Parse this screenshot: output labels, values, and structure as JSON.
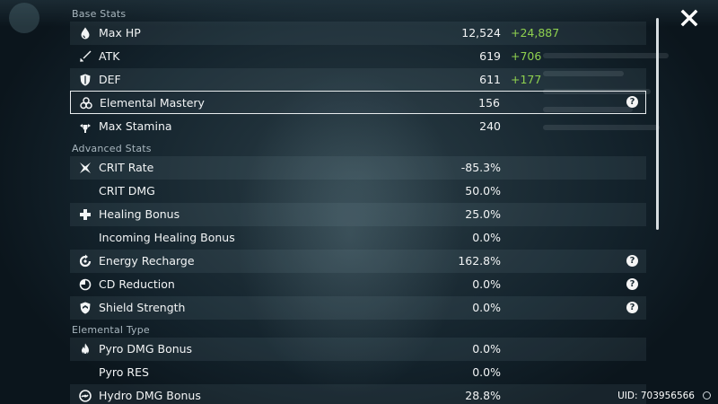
{
  "sections": {
    "base": "Base Stats",
    "advanced": "Advanced Stats",
    "elemental": "Elemental Type"
  },
  "base_stats": [
    {
      "icon": "hp-drop-icon",
      "label": "Max HP",
      "value": "12,524",
      "bonus": "+24,887"
    },
    {
      "icon": "sword-icon",
      "label": "ATK",
      "value": "619",
      "bonus": "+706"
    },
    {
      "icon": "shield-icon",
      "label": "DEF",
      "value": "611",
      "bonus": "+177"
    },
    {
      "icon": "elemental-mastery-icon",
      "label": "Elemental Mastery",
      "value": "156",
      "bonus": ""
    },
    {
      "icon": "stamina-icon",
      "label": "Max Stamina",
      "value": "240",
      "bonus": ""
    }
  ],
  "advanced_stats": [
    {
      "icon": "crit-rate-icon",
      "label": "CRIT Rate",
      "value": "-85.3%"
    },
    {
      "icon": "",
      "label": "CRIT DMG",
      "value": "50.0%"
    },
    {
      "icon": "healing-cross-icon",
      "label": "Healing Bonus",
      "value": "25.0%"
    },
    {
      "icon": "",
      "label": "Incoming Healing Bonus",
      "value": "0.0%"
    },
    {
      "icon": "energy-recharge-icon",
      "label": "Energy Recharge",
      "value": "162.8%"
    },
    {
      "icon": "cd-reduction-icon",
      "label": "CD Reduction",
      "value": "0.0%"
    },
    {
      "icon": "shield-strength-icon",
      "label": "Shield Strength",
      "value": "0.0%"
    }
  ],
  "elemental_stats": [
    {
      "icon": "pyro-icon",
      "label": "Pyro DMG Bonus",
      "value": "0.0%"
    },
    {
      "icon": "",
      "label": "Pyro RES",
      "value": "0.0%"
    },
    {
      "icon": "hydro-icon",
      "label": "Hydro DMG Bonus",
      "value": "28.8%"
    }
  ],
  "help_symbol": "?",
  "uid": "UID: 703956566",
  "colors": {
    "bonus": "#8fd14f",
    "text": "#f2f4f5",
    "section": "#a9b7bf"
  }
}
